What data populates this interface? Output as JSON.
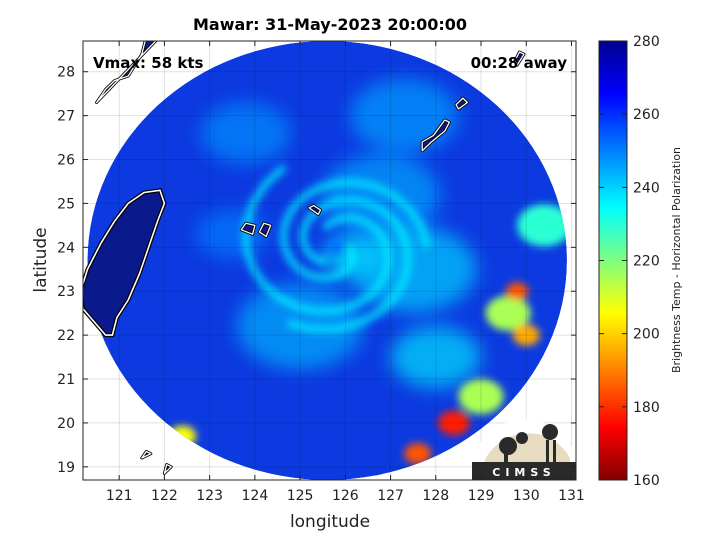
{
  "chart_data": {
    "type": "heatmap",
    "title": "Mawar: 31-May-2023 20:00:00",
    "xlabel": "longitude",
    "ylabel": "latitude",
    "xlim": [
      120.2,
      131.1
    ],
    "ylim": [
      18.7,
      28.7
    ],
    "x_ticks": [
      121,
      122,
      123,
      124,
      125,
      126,
      127,
      128,
      129,
      130,
      131
    ],
    "y_ticks": [
      19,
      20,
      21,
      22,
      23,
      24,
      25,
      26,
      27,
      28
    ],
    "grid": true,
    "annotations": {
      "vmax": "Vmax: 58 kts",
      "time_away": "00:28 away"
    },
    "colorbar": {
      "label": "Brightness Temp - Horizontal Polarization",
      "range": [
        160,
        280
      ],
      "ticks": [
        160,
        180,
        200,
        220,
        240,
        260,
        280
      ],
      "colormap": "jet"
    },
    "storm_center": {
      "lon": 125.8,
      "lat": 24.0
    },
    "swath": {
      "center_lon": 125.6,
      "center_lat": 23.7,
      "radius_lon": 5.3,
      "radius_lat": 5.0
    },
    "warm_cells": [
      {
        "lon": 129.8,
        "lat": 23.0,
        "radius": 0.25,
        "value": 185
      },
      {
        "lon": 130.0,
        "lat": 22.0,
        "radius": 0.3,
        "value": 195
      },
      {
        "lon": 129.6,
        "lat": 22.5,
        "radius": 0.5,
        "value": 215
      },
      {
        "lon": 128.4,
        "lat": 20.0,
        "radius": 0.35,
        "value": 178
      },
      {
        "lon": 127.6,
        "lat": 19.3,
        "radius": 0.3,
        "value": 185
      },
      {
        "lon": 129.0,
        "lat": 20.6,
        "radius": 0.5,
        "value": 215
      },
      {
        "lon": 122.4,
        "lat": 19.7,
        "radius": 0.3,
        "value": 205
      },
      {
        "lon": 130.4,
        "lat": 24.5,
        "radius": 0.6,
        "value": 230
      }
    ],
    "rainbands": [
      {
        "lon": 126.2,
        "lat": 23.8,
        "radius": 0.7,
        "value": 236
      },
      {
        "lon": 126.8,
        "lat": 25.2,
        "radius": 1.3,
        "value": 245
      },
      {
        "lon": 127.5,
        "lat": 23.5,
        "radius": 1.4,
        "value": 240
      },
      {
        "lon": 125.0,
        "lat": 22.2,
        "radius": 1.4,
        "value": 244
      },
      {
        "lon": 128.0,
        "lat": 21.5,
        "radius": 1.0,
        "value": 238
      },
      {
        "lon": 123.8,
        "lat": 26.6,
        "radius": 1.0,
        "value": 248
      },
      {
        "lon": 127.3,
        "lat": 27.0,
        "radius": 1.2,
        "value": 246
      },
      {
        "lon": 123.5,
        "lat": 24.3,
        "radius": 0.8,
        "value": 250
      }
    ],
    "land": {
      "taiwan": [
        [
          121.9,
          25.3
        ],
        [
          121.55,
          25.25
        ],
        [
          121.2,
          25.0
        ],
        [
          120.9,
          24.6
        ],
        [
          120.6,
          24.1
        ],
        [
          120.3,
          23.5
        ],
        [
          120.15,
          23.0
        ],
        [
          120.2,
          22.6
        ],
        [
          120.45,
          22.3
        ],
        [
          120.7,
          22.0
        ],
        [
          120.85,
          22.0
        ],
        [
          120.95,
          22.4
        ],
        [
          121.2,
          22.8
        ],
        [
          121.45,
          23.4
        ],
        [
          121.65,
          24.0
        ],
        [
          121.85,
          24.6
        ],
        [
          122.0,
          25.0
        ]
      ],
      "islands": [
        [
          [
            124.1,
            24.35
          ],
          [
            124.25,
            24.25
          ],
          [
            124.35,
            24.5
          ],
          [
            124.2,
            24.55
          ]
        ],
        [
          [
            123.7,
            24.4
          ],
          [
            123.95,
            24.3
          ],
          [
            124.0,
            24.5
          ],
          [
            123.8,
            24.55
          ]
        ],
        [
          [
            125.2,
            24.9
          ],
          [
            125.4,
            24.75
          ],
          [
            125.45,
            24.85
          ],
          [
            125.3,
            24.95
          ]
        ],
        [
          [
            127.7,
            26.2
          ],
          [
            127.9,
            26.4
          ],
          [
            128.2,
            26.65
          ],
          [
            128.3,
            26.85
          ],
          [
            128.2,
            26.9
          ],
          [
            127.95,
            26.55
          ],
          [
            127.7,
            26.4
          ]
        ],
        [
          [
            128.5,
            27.15
          ],
          [
            128.7,
            27.3
          ],
          [
            128.6,
            27.4
          ],
          [
            128.45,
            27.25
          ]
        ],
        [
          [
            129.8,
            28.15
          ],
          [
            129.95,
            28.4
          ],
          [
            129.85,
            28.45
          ],
          [
            129.75,
            28.25
          ]
        ],
        [
          [
            120.5,
            27.3
          ],
          [
            120.7,
            27.6
          ],
          [
            120.9,
            27.8
          ],
          [
            121.2,
            27.9
          ],
          [
            121.5,
            28.4
          ],
          [
            121.6,
            28.8
          ],
          [
            121.9,
            28.8
          ]
        ],
        [
          [
            121.5,
            19.2
          ],
          [
            121.7,
            19.3
          ],
          [
            121.6,
            19.35
          ]
        ],
        [
          [
            122.0,
            18.85
          ],
          [
            122.15,
            19.0
          ],
          [
            122.05,
            19.05
          ]
        ]
      ]
    }
  },
  "logo": {
    "text": "CIMSS"
  }
}
